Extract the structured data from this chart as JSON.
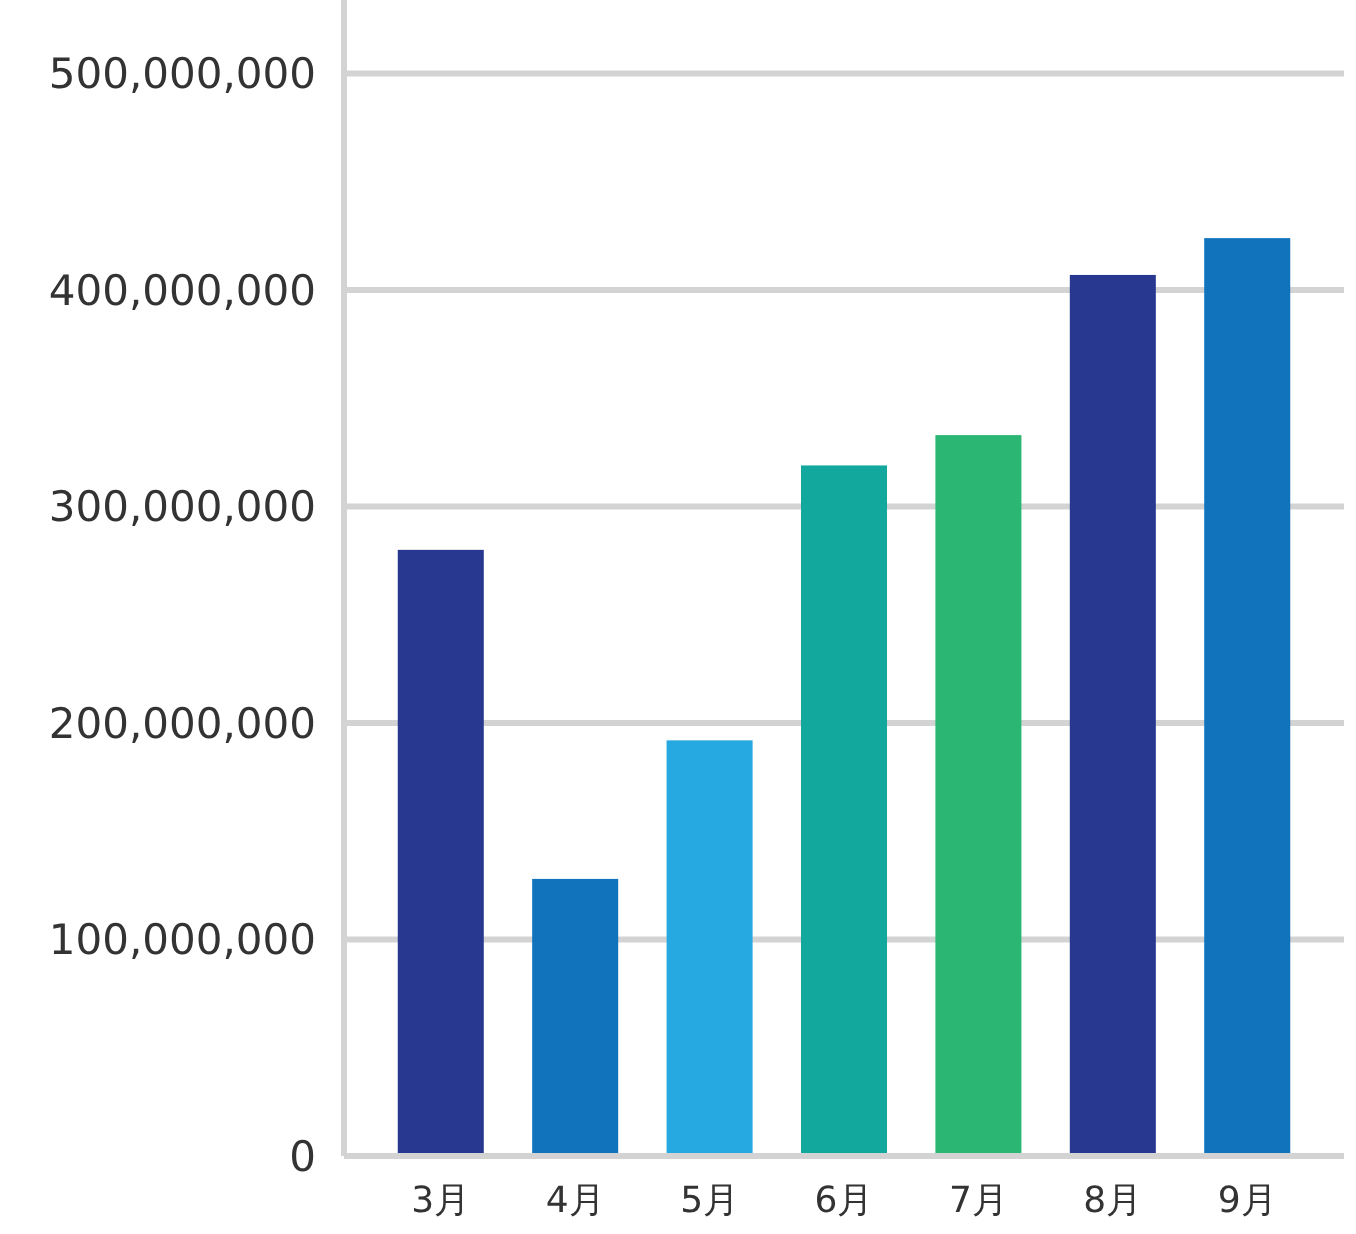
{
  "chart_data": {
    "type": "bar",
    "categories": [
      "3月",
      "4月",
      "5月",
      "6月",
      "7月",
      "8月",
      "9月"
    ],
    "values": [
      280000000,
      128000000,
      192000000,
      319000000,
      333000000,
      407000000,
      424000000
    ],
    "colors": [
      "#283891",
      "#1073bb",
      "#25a9e0",
      "#13a89e",
      "#2bb673",
      "#283891",
      "#1073bb"
    ],
    "ylim": [
      0,
      534000000
    ],
    "yticks": [
      {
        "value": 0,
        "label": "0"
      },
      {
        "value": 100000000,
        "label": "100,000,000"
      },
      {
        "value": 200000000,
        "label": "200,000,000"
      },
      {
        "value": 300000000,
        "label": "300,000,000"
      },
      {
        "value": 400000000,
        "label": "400,000,000"
      },
      {
        "value": 500000000,
        "label": "500,000,000"
      }
    ],
    "grid": "y"
  }
}
